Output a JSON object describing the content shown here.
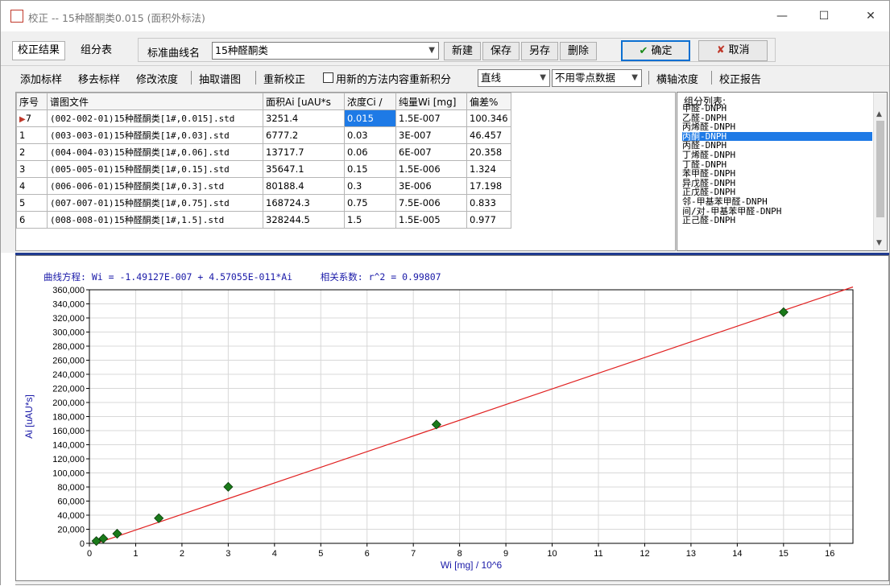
{
  "window": {
    "title": "校正 -- 15种醛酮类0.015 (面积外标法)",
    "minimize": "—",
    "maximize": "☐",
    "close": "✕"
  },
  "tabs": [
    "校正结果",
    "组分表"
  ],
  "curve_name": {
    "label": "标准曲线名",
    "value": "15种醛酮类"
  },
  "top_buttons": {
    "new": "新建",
    "save": "保存",
    "save_as": "另存",
    "delete": "删除",
    "confirm": "确定",
    "cancel": "取消"
  },
  "toolbar": {
    "add_std": "添加标样",
    "remove_std": "移去标样",
    "modify_conc": "修改浓度",
    "extract_chrom": "抽取谱图",
    "recalibrate": "重新校正",
    "reintegrate_checkbox": "用新的方法内容重新积分",
    "fit_type": "直线",
    "zero_point": "不用零点数据",
    "horizontal_conc": "横轴浓度",
    "report": "校正报告"
  },
  "table": {
    "headers": [
      "序号",
      "谱图文件",
      "面积Ai [uAU*s",
      "浓度Ci /",
      "纯量Wi [mg]",
      "偏差%"
    ],
    "rows": [
      {
        "no": "7",
        "file": "(002-002-01)15种醛酮类[1#,0.015].std",
        "area": "3251.4",
        "conc": "0.015",
        "wi": "1.5E-007",
        "dev": "100.346"
      },
      {
        "no": "1",
        "file": "(003-003-01)15种醛酮类[1#,0.03].std",
        "area": "6777.2",
        "conc": "0.03",
        "wi": "3E-007",
        "dev": "46.457"
      },
      {
        "no": "2",
        "file": "(004-004-03)15种醛酮类[1#,0.06].std",
        "area": "13717.7",
        "conc": "0.06",
        "wi": "6E-007",
        "dev": "20.358"
      },
      {
        "no": "3",
        "file": "(005-005-01)15种醛酮类[1#,0.15].std",
        "area": "35647.1",
        "conc": "0.15",
        "wi": "1.5E-006",
        "dev": "1.324"
      },
      {
        "no": "4",
        "file": "(006-006-01)15种醛酮类[1#,0.3].std",
        "area": "80188.4",
        "conc": "0.3",
        "wi": "3E-006",
        "dev": "17.198"
      },
      {
        "no": "5",
        "file": "(007-007-01)15种醛酮类[1#,0.75].std",
        "area": "168724.3",
        "conc": "0.75",
        "wi": "7.5E-006",
        "dev": "0.833"
      },
      {
        "no": "6",
        "file": "(008-008-01)15种醛酮类[1#,1.5].std",
        "area": "328244.5",
        "conc": "1.5",
        "wi": "1.5E-005",
        "dev": "0.977"
      }
    ]
  },
  "component_list": {
    "title": "组分列表:",
    "items": [
      "甲醛-DNPH",
      "乙醛-DNPH",
      "丙烯醛-DNPH",
      "丙酮-DNPH",
      "丙醛-DNPH",
      "丁烯醛-DNPH",
      "丁醛-DNPH",
      "苯甲醛-DNPH",
      "异戊醛-DNPH",
      "正戊醛-DNPH",
      "邻-甲基苯甲醛-DNPH",
      "间/对-甲基苯甲醛-DNPH",
      "正己醛-DNPH"
    ],
    "selected_index": 3
  },
  "equation": {
    "curve": "曲线方程: Wi = -1.49127E-007 + 4.57055E-011*Ai",
    "corr": "相关系数: r^2 = 0.99807"
  },
  "chart_data": {
    "type": "scatter",
    "xlabel": "Wi [mg] / 10^6",
    "ylabel": "Ai [uAU*s]",
    "xlim": [
      0,
      16.5
    ],
    "ylim": [
      0,
      360000
    ],
    "x_ticks": [
      0,
      1,
      2,
      3,
      4,
      5,
      6,
      7,
      8,
      9,
      10,
      11,
      12,
      13,
      14,
      15,
      16
    ],
    "y_ticks": [
      0,
      20000,
      40000,
      60000,
      80000,
      100000,
      120000,
      140000,
      160000,
      180000,
      200000,
      220000,
      240000,
      260000,
      280000,
      300000,
      320000,
      340000,
      360000
    ],
    "y_tick_labels": [
      "0",
      "20,000",
      "40,000",
      "60,000",
      "80,000",
      "100,000",
      "120,000",
      "140,000",
      "160,000",
      "180,000",
      "200,000",
      "220,000",
      "240,000",
      "260,000",
      "280,000",
      "300,000",
      "320,000",
      "340,000",
      "360,000"
    ],
    "points": [
      {
        "x": 0.15,
        "y": 3251.4
      },
      {
        "x": 0.3,
        "y": 6777.2
      },
      {
        "x": 0.6,
        "y": 13717.7
      },
      {
        "x": 1.5,
        "y": 35647.1
      },
      {
        "x": 3.0,
        "y": 80188.4
      },
      {
        "x": 7.5,
        "y": 168724.3
      },
      {
        "x": 15.0,
        "y": 328244.5
      }
    ],
    "fit_line": {
      "x": [
        0.15,
        16.5
      ],
      "y": [
        0,
        364000
      ]
    },
    "grid": true,
    "colors": {
      "line": "#e02020",
      "marker": "#1a7a1a",
      "axis_label": "#1a1aa8"
    }
  }
}
